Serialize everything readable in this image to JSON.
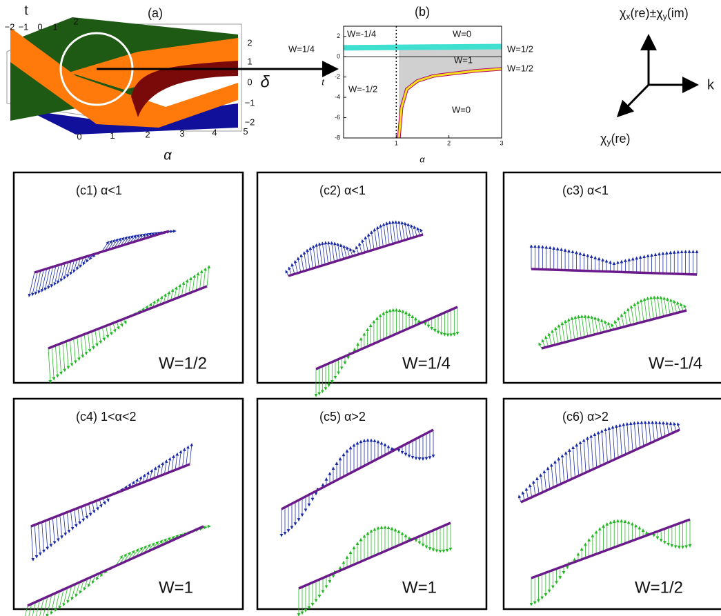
{
  "panel_a": {
    "label": "(a)",
    "t_axis": "t",
    "alpha_axis": "α",
    "delta_axis": "δ",
    "t_ticks": [
      "−2",
      "−1",
      "0",
      "1",
      "2"
    ],
    "delta_ticks": [
      "2",
      "1",
      "0",
      "−1",
      "−2"
    ],
    "alpha_ticks": [
      "0",
      "1",
      "2",
      "3",
      "4",
      "5"
    ]
  },
  "panel_b": {
    "label": "(b)",
    "x_label": "α",
    "y_label": "t",
    "xlim": [
      0,
      3
    ],
    "ylim": [
      -8,
      3
    ],
    "xticks": [
      1,
      2,
      3
    ],
    "yticks": [
      -8,
      -6,
      -4,
      -2,
      0,
      2
    ],
    "dashed_x": 1,
    "band": {
      "color": "#40e0d0",
      "x": [
        0,
        3
      ],
      "y": [
        0.75,
        1.0
      ]
    },
    "curve": {
      "color": "#f5e11a",
      "edge_color": "#b0006e",
      "x": [
        1.05,
        1.1,
        1.2,
        1.4,
        1.7,
        2,
        2.5,
        3
      ],
      "y": [
        -8,
        -5,
        -3.2,
        -2.4,
        -1.9,
        -1.7,
        -1.4,
        -1.2
      ]
    },
    "region_labels": [
      "W=-1/4",
      "W=0",
      "W=1",
      "W=-1/2",
      "W=0"
    ],
    "side_labels": [
      "W=1/4",
      "W=1/2",
      "W=1/2"
    ]
  },
  "axes_diagram": {
    "vertical": [
      "χ",
      "x",
      "(re)±χ",
      "y",
      "(im)"
    ],
    "horizontal": "k",
    "diagonal": [
      "χ",
      "y",
      "(re)"
    ]
  },
  "panels": [
    {
      "label": "(c1) α<1",
      "winding": "W=1/2"
    },
    {
      "label": "(c2) α<1",
      "winding": "W=1/4"
    },
    {
      "label": "(c3) α<1",
      "winding": "W=-1/4"
    },
    {
      "label": "(c4) 1<α<2",
      "winding": "W=1"
    },
    {
      "label": "(c5) α>2",
      "winding": "W=1"
    },
    {
      "label": "(c6) α>2",
      "winding": "W=1/2"
    }
  ]
}
